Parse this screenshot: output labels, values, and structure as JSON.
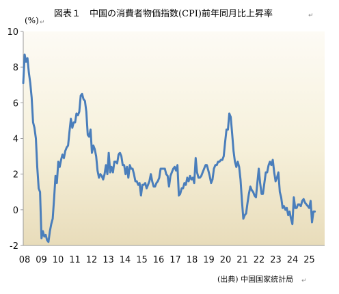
{
  "chart_data": {
    "type": "line",
    "title": "図表１　中国の消費者物価指数(CPI)前年同月比上昇率",
    "ylabel": "(%)",
    "xlabel": "",
    "source": "(出典) 中国国家統計局",
    "ylim": [
      -2,
      10
    ],
    "yticks": [
      "-2",
      "0",
      "2",
      "4",
      "6",
      "8",
      "10"
    ],
    "xticks": [
      "08",
      "09",
      "10",
      "11",
      "12",
      "13",
      "14",
      "15",
      "16",
      "17",
      "18",
      "19",
      "20",
      "21",
      "22",
      "23",
      "24",
      "25"
    ],
    "grid": false,
    "legend": "none",
    "line_color": "#4a7ebb",
    "series": [
      {
        "x_start_year": 2008,
        "frequency": "monthly",
        "values": [
          7.1,
          8.7,
          8.3,
          8.5,
          7.7,
          7.1,
          6.3,
          4.9,
          4.6,
          4.0,
          2.4,
          1.2,
          1.0,
          -1.6,
          -1.2,
          -1.5,
          -1.4,
          -1.7,
          -1.8,
          -1.2,
          -0.8,
          -0.5,
          0.6,
          1.9,
          1.5,
          2.7,
          2.4,
          2.8,
          3.1,
          2.9,
          3.3,
          3.5,
          3.6,
          4.4,
          5.1,
          4.6,
          4.9,
          4.9,
          5.4,
          5.3,
          5.5,
          6.4,
          6.5,
          6.2,
          6.1,
          5.5,
          4.2,
          4.1,
          4.5,
          3.2,
          3.6,
          3.4,
          3.0,
          2.2,
          1.8,
          2.0,
          1.9,
          1.7,
          2.0,
          2.5,
          2.0,
          3.2,
          2.1,
          2.4,
          2.1,
          2.7,
          2.7,
          2.6,
          3.1,
          3.2,
          3.0,
          2.5,
          2.5,
          2.0,
          2.4,
          1.8,
          2.5,
          2.3,
          2.3,
          2.0,
          1.6,
          1.6,
          1.4,
          1.5,
          0.8,
          1.4,
          1.4,
          1.5,
          1.2,
          1.4,
          1.6,
          2.0,
          1.6,
          1.3,
          1.3,
          1.5,
          1.6,
          1.8,
          2.3,
          2.3,
          2.3,
          2.3,
          2.0,
          1.9,
          1.3,
          1.9,
          2.1,
          2.3,
          2.4,
          2.2,
          2.5,
          0.8,
          0.9,
          1.2,
          1.2,
          1.5,
          1.4,
          1.8,
          1.6,
          1.9,
          1.7,
          1.8,
          1.5,
          2.9,
          2.1,
          1.8,
          1.8,
          1.9,
          2.1,
          2.3,
          2.5,
          2.5,
          2.2,
          1.9,
          1.5,
          1.7,
          2.3,
          2.5,
          2.5,
          2.7,
          2.7,
          2.8,
          2.8,
          3.0,
          3.8,
          4.5,
          4.5,
          5.4,
          5.2,
          4.3,
          3.3,
          2.7,
          2.4,
          2.7,
          2.4,
          1.7,
          0.5,
          -0.5,
          -0.3,
          -0.2,
          0.4,
          0.9,
          1.3,
          1.1,
          1.0,
          0.8,
          0.7,
          1.5,
          2.3,
          1.5,
          0.9,
          0.9,
          1.5,
          2.1,
          2.1,
          2.5,
          2.7,
          2.5,
          2.8,
          2.1,
          1.6,
          1.8,
          2.1,
          1.0,
          0.7,
          0.1,
          0.2,
          0.0,
          0.1,
          -0.3,
          -0.1,
          -0.5,
          -0.8,
          0.7,
          0.1,
          0.1,
          0.3,
          0.3,
          0.2,
          0.5,
          0.6,
          0.4,
          0.3,
          0.2,
          0.1,
          0.5,
          -0.7,
          -0.1,
          -0.1
        ]
      }
    ]
  }
}
